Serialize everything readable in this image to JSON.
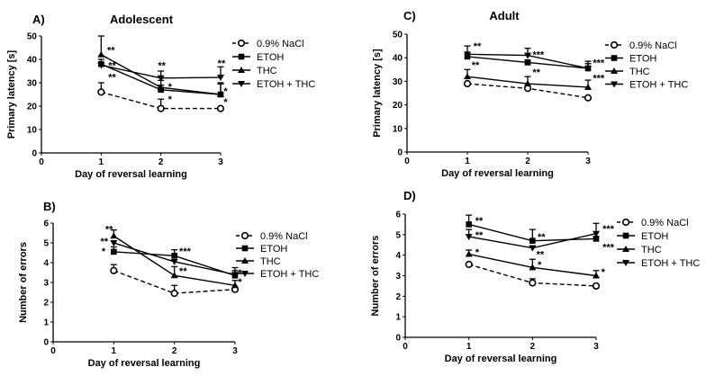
{
  "chart_data": [
    {
      "panel": "A)",
      "title": "Adolescent",
      "type": "line",
      "xlabel": "Day of reversal learning",
      "ylabel": "Primary latency [s]",
      "xlim": [
        0,
        3
      ],
      "ylim": [
        0,
        50
      ],
      "xticks": [
        0,
        1,
        2,
        3
      ],
      "yticks": [
        0,
        10,
        20,
        30,
        40,
        50
      ],
      "x": [
        1,
        2,
        3
      ],
      "legend": "right",
      "series": [
        {
          "name": "0.9% NaCl",
          "marker": "open-circle",
          "dashed": true,
          "values": [
            26,
            19,
            19
          ],
          "err": [
            4,
            4,
            0
          ]
        },
        {
          "name": "ETOH",
          "marker": "square",
          "values": [
            38,
            27,
            25
          ],
          "err": [
            2,
            2,
            5
          ]
        },
        {
          "name": "THC",
          "marker": "triangle-up",
          "values": [
            42,
            28,
            25
          ],
          "err": [
            8,
            3,
            4.5
          ]
        },
        {
          "name": "ETOH + THC",
          "marker": "triangle-down",
          "values": [
            37.5,
            32,
            32.3
          ],
          "err": [
            1,
            3,
            4.5
          ]
        }
      ],
      "annotations": [
        {
          "x": 1.1,
          "y": 44,
          "text": "**"
        },
        {
          "x": 1.12,
          "y": 37.5,
          "text": "**"
        },
        {
          "x": 1.12,
          "y": 32.5,
          "text": "**"
        },
        {
          "x": 1.95,
          "y": 37.5,
          "text": "**"
        },
        {
          "x": 2.12,
          "y": 28.5,
          "text": "*"
        },
        {
          "x": 2.12,
          "y": 23,
          "text": "*"
        },
        {
          "x": 2.95,
          "y": 38.5,
          "text": "**"
        },
        {
          "x": 3.05,
          "y": 26.5,
          "text": "*"
        },
        {
          "x": 3.05,
          "y": 22,
          "text": "*"
        }
      ]
    },
    {
      "panel": "B)",
      "title": "",
      "type": "line",
      "xlabel": "Day of reversal learning",
      "ylabel": "Number of errors",
      "xlim": [
        0,
        3
      ],
      "ylim": [
        0,
        6
      ],
      "xticks": [
        0,
        1,
        2,
        3
      ],
      "yticks": [
        0,
        1,
        2,
        3,
        4,
        5,
        6
      ],
      "x": [
        1,
        2,
        3
      ],
      "legend": "right",
      "series": [
        {
          "name": "0.9% NaCl",
          "marker": "open-circle",
          "dashed": true,
          "values": [
            3.6,
            2.45,
            2.65
          ],
          "err": [
            0.3,
            0.4,
            0
          ]
        },
        {
          "name": "ETOH",
          "marker": "square",
          "values": [
            4.55,
            4.35,
            3.35
          ],
          "err": [
            0.25,
            0.3,
            0.4
          ]
        },
        {
          "name": "THC",
          "marker": "triangle-up",
          "values": [
            5.35,
            3.35,
            2.85
          ],
          "err": [
            0.3,
            0.45,
            0.25
          ]
        },
        {
          "name": "ETOH + THC",
          "marker": "triangle-down",
          "values": [
            5.0,
            4.05,
            3.4
          ],
          "err": [
            0.1,
            0.1,
            0.2
          ]
        }
      ],
      "annotations": [
        {
          "x": 0.86,
          "y": 5.7,
          "text": "**"
        },
        {
          "x": 0.78,
          "y": 5.1,
          "text": "**"
        },
        {
          "x": 0.8,
          "y": 4.6,
          "text": "*"
        },
        {
          "x": 2.08,
          "y": 4.6,
          "text": "***"
        },
        {
          "x": 2.08,
          "y": 3.6,
          "text": "**"
        },
        {
          "x": 3.05,
          "y": 3.5,
          "text": "*"
        },
        {
          "x": 3.05,
          "y": 3.05,
          "text": "*"
        }
      ]
    },
    {
      "panel": "C)",
      "title": "Adult",
      "type": "line",
      "xlabel": "Day of reversal learning",
      "ylabel": "Primary latency [s]",
      "xlim": [
        0,
        3
      ],
      "ylim": [
        0,
        50
      ],
      "xticks": [
        0,
        1,
        2,
        3
      ],
      "yticks": [
        0,
        10,
        20,
        30,
        40,
        50
      ],
      "x": [
        1,
        2,
        3
      ],
      "legend": "right",
      "series": [
        {
          "name": "0.9% NaCl",
          "marker": "open-circle",
          "dashed": true,
          "values": [
            29,
            27,
            23
          ],
          "err": [
            0,
            0,
            0
          ]
        },
        {
          "name": "ETOH",
          "marker": "square",
          "values": [
            40.5,
            38,
            35.5
          ],
          "err": [
            1,
            1,
            2
          ]
        },
        {
          "name": "THC",
          "marker": "triangle-up",
          "values": [
            32,
            29,
            27.5
          ],
          "err": [
            3,
            3,
            3
          ]
        },
        {
          "name": "ETOH + THC",
          "marker": "triangle-down",
          "values": [
            41.5,
            41,
            35.5
          ],
          "err": [
            3.5,
            3,
            3
          ]
        }
      ],
      "annotations": [
        {
          "x": 1.1,
          "y": 45,
          "text": "**"
        },
        {
          "x": 1.07,
          "y": 37,
          "text": "**"
        },
        {
          "x": 2.08,
          "y": 41.5,
          "text": "***"
        },
        {
          "x": 2.08,
          "y": 34,
          "text": "**"
        },
        {
          "x": 3.08,
          "y": 38,
          "text": "***"
        },
        {
          "x": 3.08,
          "y": 31.5,
          "text": "***"
        }
      ]
    },
    {
      "panel": "D)",
      "title": "",
      "type": "line",
      "xlabel": "Day of reversal learning",
      "ylabel": "Number of errors",
      "xlim": [
        0,
        3
      ],
      "ylim": [
        0,
        6
      ],
      "xticks": [
        0,
        1,
        2,
        3
      ],
      "yticks": [
        0,
        1,
        2,
        3,
        4,
        5,
        6
      ],
      "x": [
        1,
        2,
        3
      ],
      "legend": "right",
      "series": [
        {
          "name": "0.9% NaCl",
          "marker": "open-circle",
          "dashed": true,
          "values": [
            3.55,
            2.65,
            2.5
          ],
          "err": [
            0,
            0.2,
            0
          ]
        },
        {
          "name": "ETOH",
          "marker": "square",
          "values": [
            5.5,
            4.7,
            4.8
          ],
          "err": [
            0.45,
            0.55,
            0.1
          ]
        },
        {
          "name": "THC",
          "marker": "triangle-up",
          "values": [
            4.05,
            3.4,
            3.0
          ],
          "err": [
            0.2,
            0.4,
            0.25
          ]
        },
        {
          "name": "ETOH + THC",
          "marker": "triangle-down",
          "values": [
            4.9,
            4.35,
            5.05
          ],
          "err": [
            0.35,
            0.1,
            0.5
          ]
        }
      ],
      "annotations": [
        {
          "x": 1.1,
          "y": 5.7,
          "text": "**"
        },
        {
          "x": 1.1,
          "y": 5.0,
          "text": "**"
        },
        {
          "x": 1.1,
          "y": 4.15,
          "text": "*"
        },
        {
          "x": 2.08,
          "y": 4.9,
          "text": "**"
        },
        {
          "x": 2.06,
          "y": 4.05,
          "text": "**"
        },
        {
          "x": 2.08,
          "y": 3.55,
          "text": "*"
        },
        {
          "x": 3.1,
          "y": 5.3,
          "text": "***"
        },
        {
          "x": 3.1,
          "y": 4.4,
          "text": "***"
        },
        {
          "x": 3.08,
          "y": 3.2,
          "text": "*"
        }
      ]
    }
  ]
}
